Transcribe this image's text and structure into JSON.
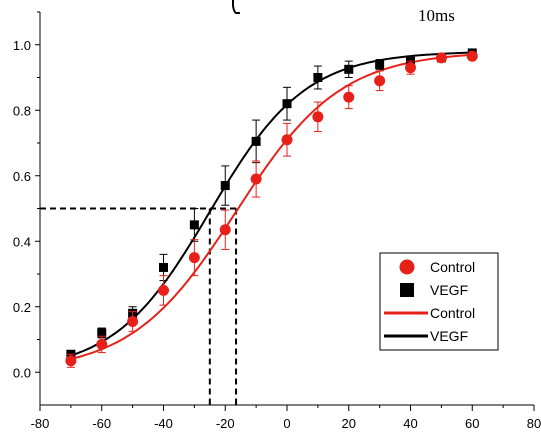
{
  "top_annotation": "10ms",
  "chart_data": {
    "type": "scatter",
    "xlim": [
      -80,
      80
    ],
    "ylim": [
      -0.1,
      1.1
    ],
    "x_ticks": [
      -80,
      -60,
      -40,
      -20,
      0,
      20,
      40,
      60,
      80
    ],
    "y_ticks": [
      0.0,
      0.2,
      0.4,
      0.6,
      0.8,
      1.0
    ],
    "x_tick_labels": [
      "-80",
      "-60",
      "-40",
      "-20",
      "0",
      "20",
      "40",
      "60",
      "80"
    ],
    "y_tick_labels": [
      "0.0",
      "0.2",
      "0.4",
      "0.6",
      "0.8",
      "1.0"
    ],
    "grid": false,
    "legend_position": "bottom-right",
    "series": [
      {
        "name": "Control",
        "marker": "circle",
        "color": "#e8201a",
        "x": [
          -70,
          -60,
          -50,
          -40,
          -30,
          -20,
          -10,
          0,
          10,
          20,
          30,
          40,
          50,
          60
        ],
        "y": [
          0.035,
          0.085,
          0.155,
          0.25,
          0.35,
          0.435,
          0.59,
          0.71,
          0.78,
          0.84,
          0.89,
          0.93,
          0.96,
          0.965
        ],
        "err": [
          0.02,
          0.025,
          0.03,
          0.045,
          0.055,
          0.06,
          0.055,
          0.05,
          0.045,
          0.035,
          0.03,
          0.02,
          0.01,
          0.01
        ]
      },
      {
        "name": "VEGF",
        "marker": "square",
        "color": "#000000",
        "x": [
          -70,
          -60,
          -50,
          -40,
          -30,
          -20,
          -10,
          0,
          10,
          20,
          30,
          40,
          50,
          60
        ],
        "y": [
          0.055,
          0.12,
          0.18,
          0.32,
          0.45,
          0.57,
          0.705,
          0.82,
          0.9,
          0.925,
          0.94,
          0.95,
          0.96,
          0.975
        ],
        "err": [
          0.01,
          0.015,
          0.02,
          0.04,
          0.05,
          0.06,
          0.065,
          0.05,
          0.035,
          0.025,
          0.015,
          0.01,
          0.01,
          0.01
        ]
      }
    ],
    "fits": [
      {
        "name": "Control",
        "color": "#e8201a",
        "v_half": -16.5,
        "slope": 17.0,
        "top": 0.98,
        "bottom": 0.0
      },
      {
        "name": "VEGF",
        "color": "#000000",
        "v_half": -25.0,
        "slope": 15.5,
        "top": 0.98,
        "bottom": 0.0
      }
    ],
    "guide_lines": {
      "y": 0.5,
      "x": [
        -25,
        -16.5
      ]
    },
    "legend": [
      {
        "label": "Control",
        "kind": "marker-circle",
        "color": "#e8201a"
      },
      {
        "label": "VEGF",
        "kind": "marker-square",
        "color": "#000000"
      },
      {
        "label": "Control",
        "kind": "line",
        "color": "#e8201a"
      },
      {
        "label": "VEGF",
        "kind": "line",
        "color": "#000000"
      }
    ]
  }
}
